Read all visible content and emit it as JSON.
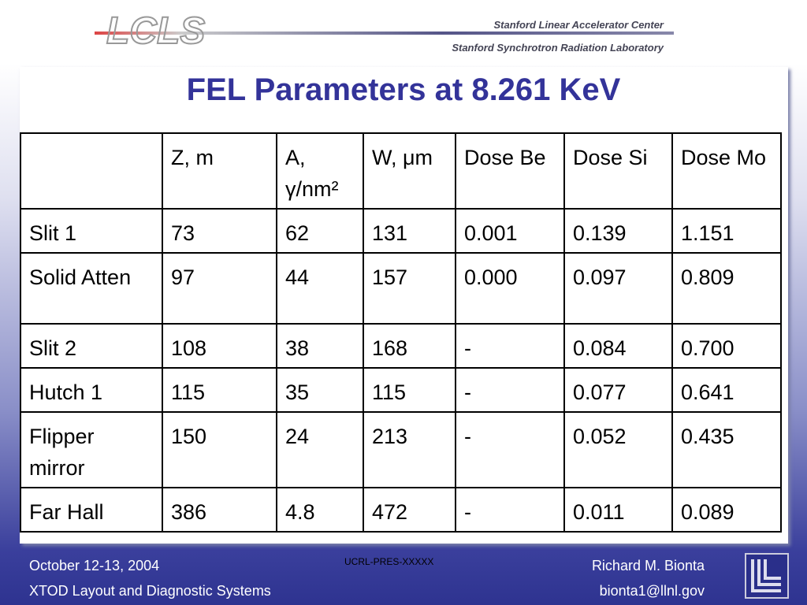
{
  "header": {
    "logo": "LCLS",
    "lab1": "Stanford Linear Accelerator Center",
    "lab2": "Stanford Synchrotron Radiation Laboratory"
  },
  "title": "FEL Parameters at 8.261 KeV",
  "table": {
    "columns": [
      "Z, m",
      "A, γ/nm²",
      "W, μm",
      "Dose Be",
      "Dose Si",
      "Dose Mo"
    ],
    "rows": [
      [
        "Slit 1",
        "73",
        "62",
        "131",
        "0.001",
        "0.139",
        "1.151"
      ],
      [
        "Solid Atten",
        "97",
        "44",
        "157",
        "0.000",
        "0.097",
        "0.809"
      ],
      [
        "Slit 2",
        "108",
        "38",
        "168",
        "-",
        "0.084",
        "0.700"
      ],
      [
        "Hutch 1",
        "115",
        "35",
        "115",
        "-",
        "0.077",
        "0.641"
      ],
      [
        "Flipper mirror",
        "150",
        "24",
        "213",
        "-",
        "0.052",
        "0.435"
      ],
      [
        "Far Hall",
        "386",
        "4.8",
        "472",
        "-",
        "0.011",
        "0.089"
      ]
    ]
  },
  "footer": {
    "date": "October 12-13, 2004",
    "subject": "XTOD Layout and Diagnostic Systems",
    "code": "UCRL-PRES-XXXXX",
    "author": "Richard M. Bionta",
    "email": "bionta1@llnl.gov"
  }
}
